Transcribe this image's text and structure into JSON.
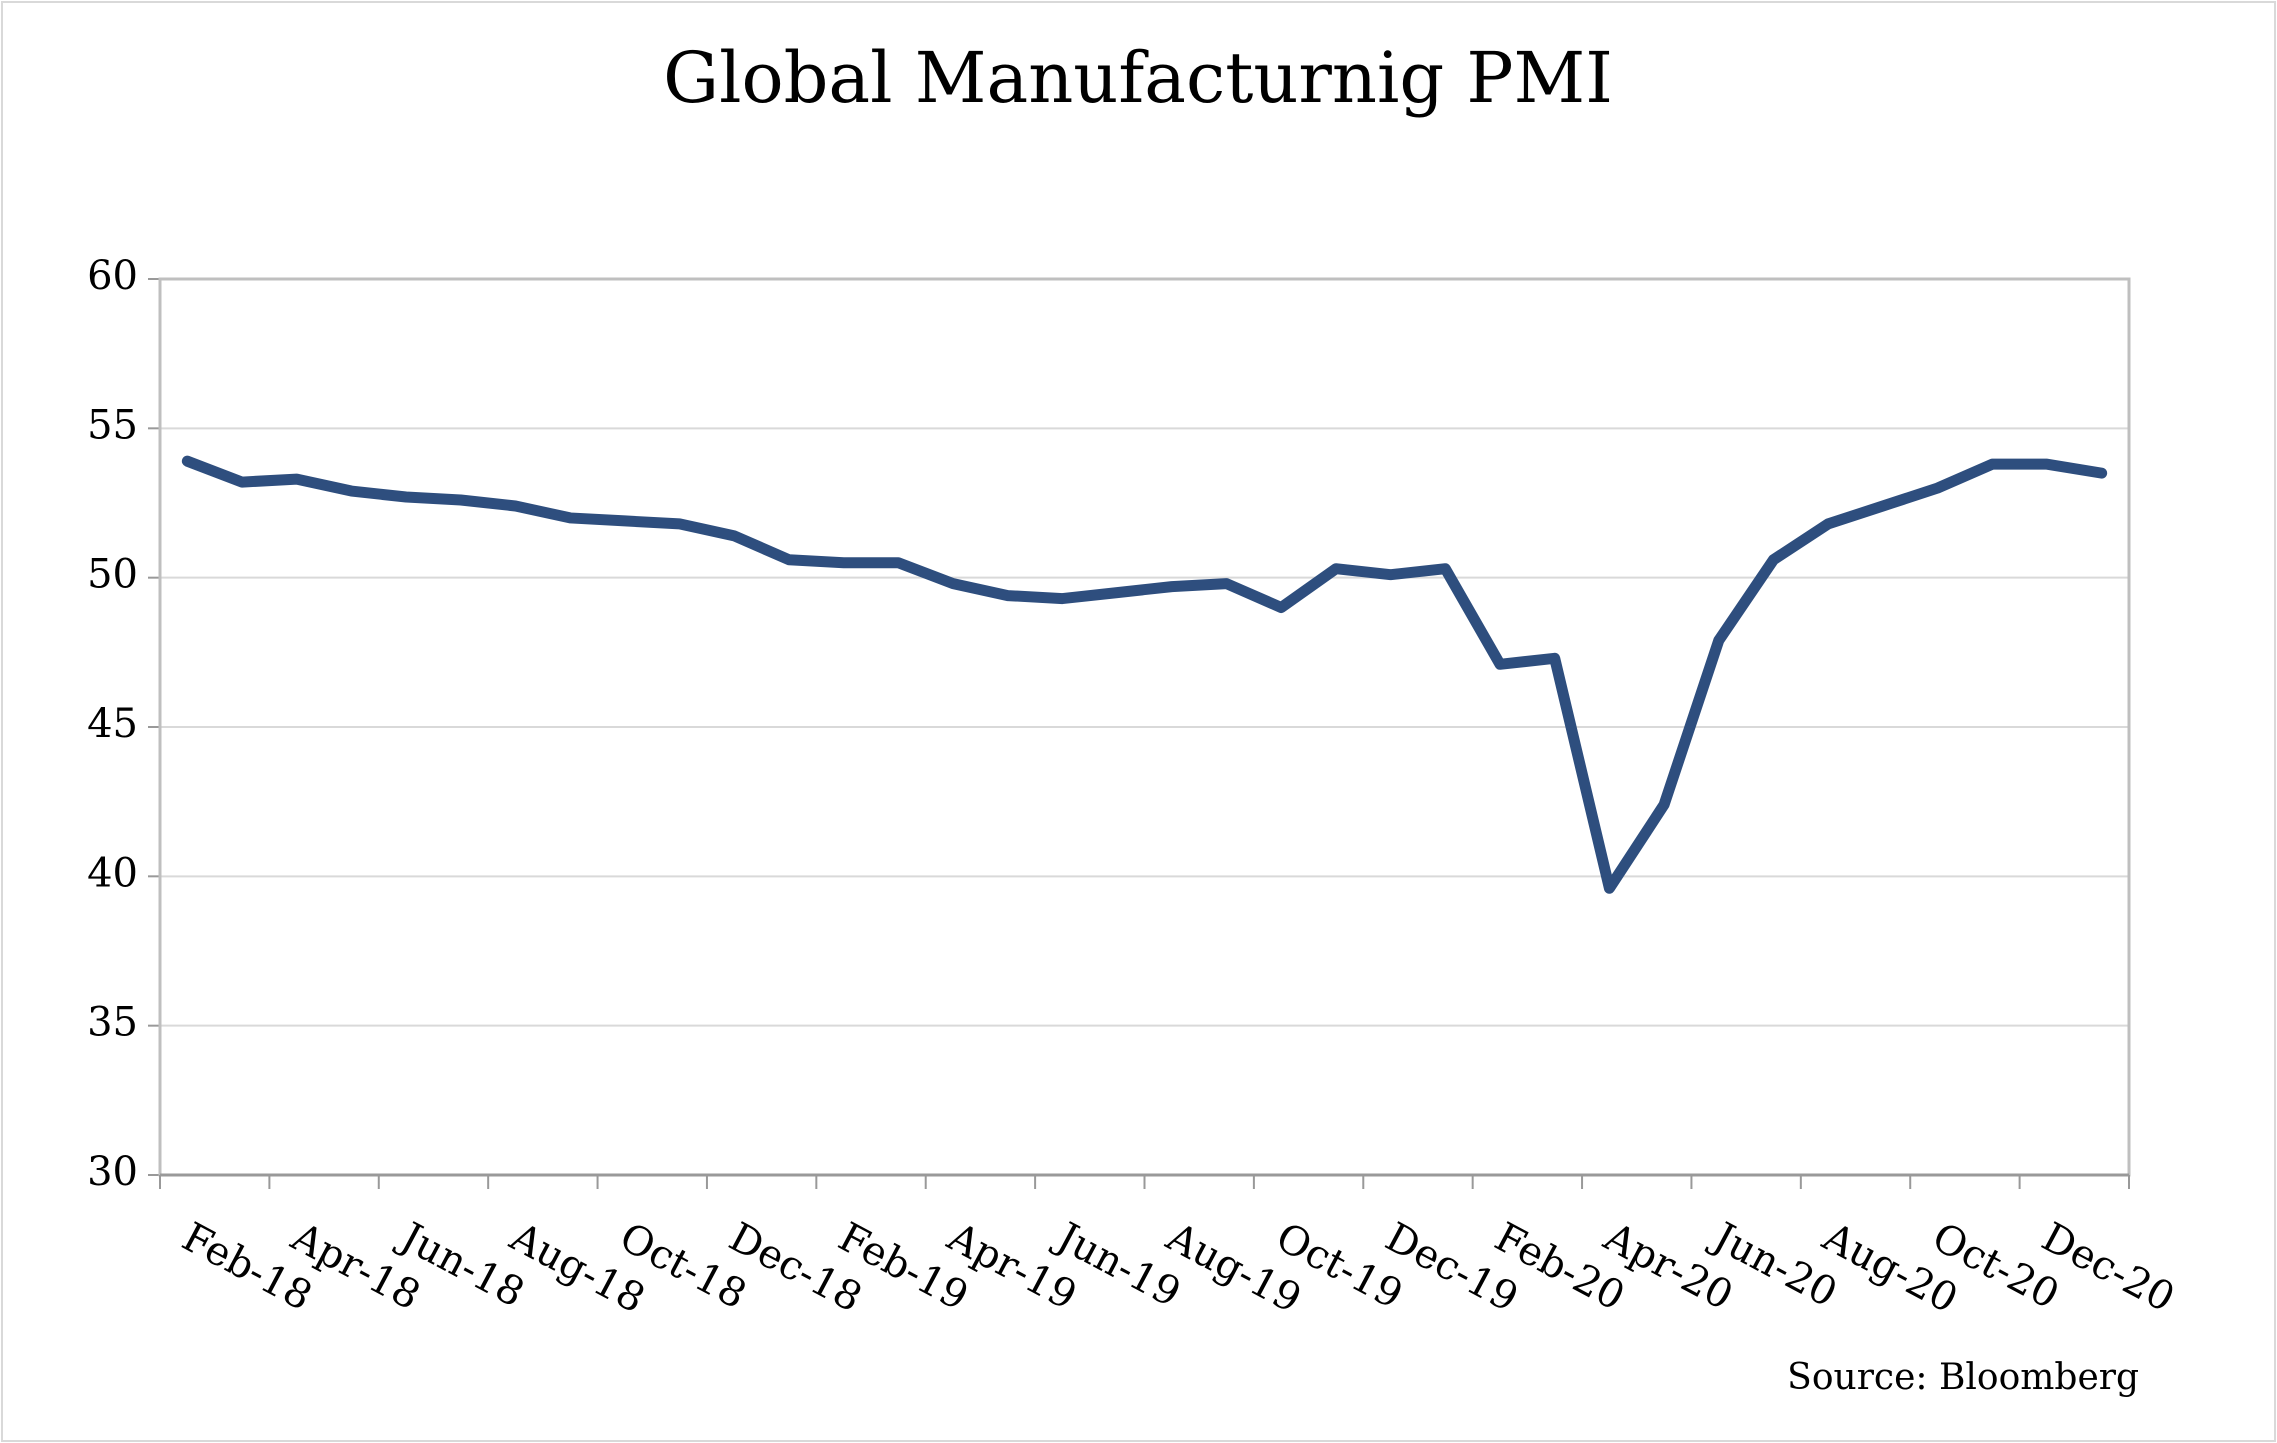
{
  "chart_data": {
    "type": "line",
    "title": "Global Manufacturnig PMI",
    "categories": [
      null,
      "Feb-18",
      null,
      "Apr-18",
      null,
      "Jun-18",
      null,
      "Aug-18",
      null,
      "Oct-18",
      null,
      "Dec-18",
      null,
      "Feb-19",
      null,
      "Apr-19",
      null,
      "Jun-19",
      null,
      "Aug-19",
      null,
      "Oct-19",
      null,
      "Dec-19",
      null,
      "Feb-20",
      null,
      "Apr-20",
      null,
      "Jun-20",
      null,
      "Aug-20",
      null,
      "Oct-20",
      null,
      "Dec-20"
    ],
    "series": [
      {
        "name": "Global Manufacturing PMI",
        "color": "#2e4e7e",
        "values": [
          53.9,
          53.2,
          53.3,
          52.9,
          52.7,
          52.6,
          52.4,
          52.0,
          51.9,
          51.8,
          51.4,
          50.6,
          50.5,
          50.5,
          49.8,
          49.4,
          49.3,
          49.5,
          49.7,
          49.8,
          49.0,
          50.3,
          50.1,
          50.3,
          47.1,
          47.3,
          39.6,
          42.4,
          47.9,
          50.6,
          51.8,
          52.4,
          53.0,
          53.8,
          53.8,
          53.5
        ]
      }
    ],
    "ylim": [
      30,
      60
    ],
    "yticks": [
      30,
      35,
      40,
      45,
      50,
      55,
      60
    ],
    "grid": true,
    "source": "Source: Bloomberg"
  }
}
